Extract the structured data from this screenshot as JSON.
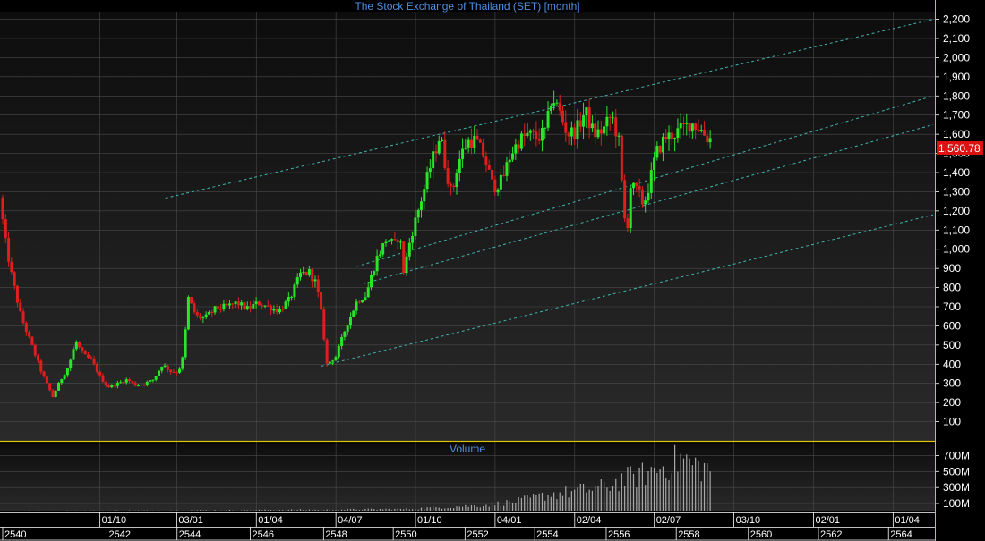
{
  "window": {
    "title": "The Stock Exchange of Thailand (SET) [month]",
    "volume_title": "Volume"
  },
  "colors": {
    "background": "#000000",
    "panel_top": "#0d0d0d",
    "panel_bottom": "#2a2a2a",
    "grid": "#4a4a4a",
    "up": "#28e628",
    "down": "#e01e1e",
    "channel": "#3fb5ad",
    "separator": "#d6c400",
    "title": "#4f8fe0",
    "volume": "#a8a8a8",
    "last_price_bg": "#dd1111"
  },
  "chart_data": [
    {
      "type": "candlestick",
      "title": "The Stock Exchange of Thailand (SET) [month]",
      "y_ticks": [
        100,
        200,
        300,
        400,
        500,
        600,
        700,
        800,
        900,
        1000,
        1100,
        1200,
        1300,
        1400,
        1500,
        1600,
        1700,
        1800,
        1900,
        2000,
        2100,
        2200
      ],
      "y_tick_labels": [
        "100",
        "200",
        "300",
        "400",
        "500",
        "600",
        "700",
        "800",
        "900",
        "1,000",
        "1,100",
        "1,200",
        "1,300",
        "1,400",
        "1,500",
        "1,600",
        "1,700",
        "1,800",
        "1,900",
        "2,000",
        "2,100",
        "2,200"
      ],
      "ylim": [
        0,
        2240
      ],
      "last_price": 1560.78,
      "last_price_label": "1,560.78",
      "x_range_years": [
        2539.0,
        2565.3
      ],
      "x_axis_upper": [
        {
          "x": 2541.75,
          "label": "01/10"
        },
        {
          "x": 2543.92,
          "label": "03/01"
        },
        {
          "x": 2546.17,
          "label": "01/04"
        },
        {
          "x": 2548.42,
          "label": "04/07"
        },
        {
          "x": 2550.67,
          "label": "01/10"
        },
        {
          "x": 2552.92,
          "label": "04/01"
        },
        {
          "x": 2555.17,
          "label": "02/04"
        },
        {
          "x": 2557.42,
          "label": "02/07"
        },
        {
          "x": 2559.67,
          "label": "03/10"
        },
        {
          "x": 2561.92,
          "label": "02/01"
        },
        {
          "x": 2564.17,
          "label": "01/04"
        }
      ],
      "x_axis_lower": [
        {
          "x": 2539.0,
          "label": "2540"
        },
        {
          "x": 2541.95,
          "label": "2542"
        },
        {
          "x": 2543.93,
          "label": "2544"
        },
        {
          "x": 2546.0,
          "label": "2546"
        },
        {
          "x": 2548.07,
          "label": "2548"
        },
        {
          "x": 2550.04,
          "label": "2550"
        },
        {
          "x": 2552.07,
          "label": "2552"
        },
        {
          "x": 2554.04,
          "label": "2554"
        },
        {
          "x": 2556.06,
          "label": "2556"
        },
        {
          "x": 2558.04,
          "label": "2558"
        },
        {
          "x": 2560.08,
          "label": "2560"
        },
        {
          "x": 2562.06,
          "label": "2562"
        },
        {
          "x": 2564.04,
          "label": "2564"
        }
      ],
      "price_path": [
        [
          2539.0,
          1270
        ],
        [
          2539.15,
          1050
        ],
        [
          2539.35,
          850
        ],
        [
          2539.6,
          650
        ],
        [
          2539.9,
          500
        ],
        [
          2540.2,
          350
        ],
        [
          2540.5,
          230
        ],
        [
          2540.7,
          310
        ],
        [
          2540.95,
          390
        ],
        [
          2541.15,
          520
        ],
        [
          2541.35,
          450
        ],
        [
          2541.6,
          420
        ],
        [
          2541.85,
          330
        ],
        [
          2542.05,
          280
        ],
        [
          2542.35,
          300
        ],
        [
          2542.6,
          320
        ],
        [
          2542.85,
          290
        ],
        [
          2543.1,
          300
        ],
        [
          2543.35,
          320
        ],
        [
          2543.6,
          400
        ],
        [
          2543.85,
          360
        ],
        [
          2544.05,
          360
        ],
        [
          2544.2,
          450
        ],
        [
          2544.32,
          750
        ],
        [
          2544.55,
          650
        ],
        [
          2544.8,
          640
        ],
        [
          2545.1,
          690
        ],
        [
          2545.4,
          700
        ],
        [
          2545.7,
          720
        ],
        [
          2546.0,
          690
        ],
        [
          2546.3,
          720
        ],
        [
          2546.6,
          700
        ],
        [
          2546.9,
          680
        ],
        [
          2547.2,
          740
        ],
        [
          2547.5,
          870
        ],
        [
          2547.75,
          880
        ],
        [
          2547.95,
          820
        ],
        [
          2548.1,
          650
        ],
        [
          2548.25,
          400
        ],
        [
          2548.5,
          440
        ],
        [
          2548.8,
          600
        ],
        [
          2549.1,
          730
        ],
        [
          2549.35,
          760
        ],
        [
          2549.65,
          950
        ],
        [
          2549.95,
          1060
        ],
        [
          2550.15,
          1020
        ],
        [
          2550.3,
          1080
        ],
        [
          2550.42,
          880
        ],
        [
          2550.6,
          1050
        ],
        [
          2550.9,
          1250
        ],
        [
          2551.2,
          1450
        ],
        [
          2551.45,
          1600
        ],
        [
          2551.6,
          1430
        ],
        [
          2551.78,
          1280
        ],
        [
          2551.95,
          1450
        ],
        [
          2552.2,
          1560
        ],
        [
          2552.45,
          1570
        ],
        [
          2552.7,
          1480
        ],
        [
          2552.95,
          1320
        ],
        [
          2553.2,
          1360
        ],
        [
          2553.45,
          1500
        ],
        [
          2553.7,
          1570
        ],
        [
          2553.95,
          1600
        ],
        [
          2554.2,
          1580
        ],
        [
          2554.45,
          1620
        ],
        [
          2554.6,
          1800
        ],
        [
          2554.8,
          1730
        ],
        [
          2555.05,
          1600
        ],
        [
          2555.3,
          1620
        ],
        [
          2555.55,
          1720
        ],
        [
          2555.8,
          1600
        ],
        [
          2556.05,
          1620
        ],
        [
          2556.3,
          1700
        ],
        [
          2556.5,
          1560
        ],
        [
          2556.62,
          1250
        ],
        [
          2556.72,
          1050
        ],
        [
          2556.82,
          1330
        ],
        [
          2557.05,
          1300
        ],
        [
          2557.2,
          1230
        ],
        [
          2557.35,
          1330
        ],
        [
          2557.55,
          1500
        ],
        [
          2557.8,
          1580
        ],
        [
          2558.05,
          1600
        ],
        [
          2558.3,
          1630
        ],
        [
          2558.55,
          1660
        ],
        [
          2558.8,
          1630
        ],
        [
          2559.0,
          1580
        ]
      ],
      "channel_lines": [
        {
          "x1": 2543.6,
          "y1": 1267,
          "x2": 2565.3,
          "y2": 2200
        },
        {
          "x1": 2549.0,
          "y1": 910,
          "x2": 2565.3,
          "y2": 1800
        },
        {
          "x1": 2549.2,
          "y1": 820,
          "x2": 2565.3,
          "y2": 1650
        },
        {
          "x1": 2548.0,
          "y1": 390,
          "x2": 2565.3,
          "y2": 1180
        }
      ]
    },
    {
      "type": "bar",
      "title": "Volume",
      "y_ticks": [
        100,
        300,
        500,
        700
      ],
      "y_tick_labels": [
        "100M",
        "300M",
        "500M",
        "700M"
      ],
      "ylim": [
        0,
        850
      ],
      "volume_path": [
        [
          2539.0,
          10
        ],
        [
          2544.0,
          15
        ],
        [
          2548.0,
          25
        ],
        [
          2550.5,
          35
        ],
        [
          2551.5,
          60
        ],
        [
          2552.5,
          80
        ],
        [
          2553.5,
          130
        ],
        [
          2554.5,
          230
        ],
        [
          2555.0,
          250
        ],
        [
          2555.5,
          290
        ],
        [
          2556.0,
          320
        ],
        [
          2556.5,
          420
        ],
        [
          2557.0,
          470
        ],
        [
          2557.5,
          560
        ],
        [
          2557.9,
          640
        ],
        [
          2558.2,
          700
        ],
        [
          2558.5,
          620
        ],
        [
          2558.8,
          580
        ],
        [
          2559.0,
          550
        ]
      ]
    }
  ]
}
